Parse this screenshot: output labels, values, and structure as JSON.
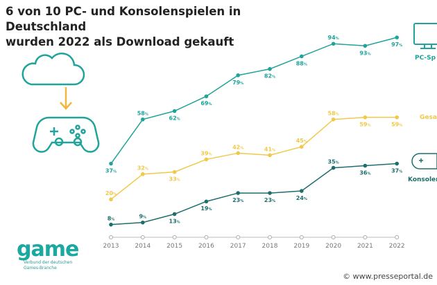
{
  "title_line1": "6 von 10 PC- und Konsolenspielen in Deutschland",
  "title_line2": "wurden 2022 als Download gekauft",
  "logo": {
    "name": "game",
    "subtitle_line1": "Verbund der deutschen",
    "subtitle_line2": "Games-Branche"
  },
  "credit": "© www.presseportal.de",
  "chart_data": {
    "type": "line",
    "x": [
      "2013",
      "2014",
      "2015",
      "2016",
      "2017",
      "2018",
      "2019",
      "2020",
      "2021",
      "2022"
    ],
    "unit": "%",
    "series": [
      {
        "name": "PC-Sp",
        "color": "#1fa39a",
        "values": [
          37,
          58,
          62,
          69,
          79,
          82,
          88,
          94,
          93,
          97
        ]
      },
      {
        "name": "Gesa",
        "color": "#f0c84a",
        "values": [
          20,
          32,
          33,
          39,
          42,
          41,
          45,
          58,
          59,
          59
        ]
      },
      {
        "name": "Konsolen",
        "color": "#1d6e6c",
        "values": [
          8,
          9,
          13,
          19,
          23,
          23,
          24,
          35,
          36,
          37
        ]
      }
    ],
    "grid": false,
    "legend": "right"
  }
}
